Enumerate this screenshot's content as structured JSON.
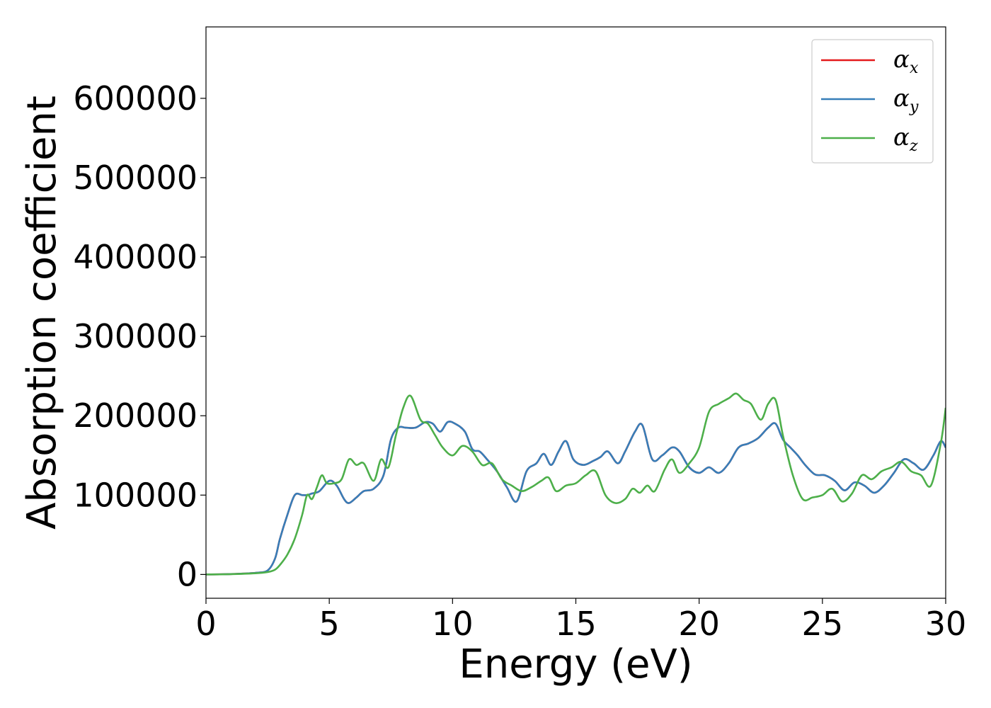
{
  "chart_data": {
    "type": "line",
    "title": "",
    "xlabel": "Energy (eV)",
    "ylabel": "Absorption coefficient",
    "xlim": [
      0,
      30
    ],
    "ylim": [
      -30000,
      690000
    ],
    "xticks": [
      0,
      5,
      10,
      15,
      20,
      25,
      30
    ],
    "yticks": [
      0,
      100000,
      200000,
      300000,
      400000,
      500000,
      600000
    ],
    "grid": false,
    "legend_position": "top-right",
    "colors": {
      "x": "#e41a1c",
      "y": "#377eb8",
      "z": "#4daf4a"
    },
    "series": [
      {
        "name": "α_x",
        "symbol": "α",
        "subscript": "x",
        "color": "#e41a1c",
        "x": [
          0,
          1,
          2,
          2.5,
          2.8,
          3.0,
          3.3,
          3.6,
          3.9,
          4.1,
          4.3,
          4.6,
          5.0,
          5.3,
          5.6,
          5.8,
          6.1,
          6.4,
          6.8,
          7.2,
          7.5,
          7.8,
          8.1,
          8.5,
          8.9,
          9.2,
          9.5,
          9.8,
          10.1,
          10.5,
          10.8,
          11.1,
          11.4,
          11.8,
          12.2,
          12.6,
          13.0,
          13.4,
          13.7,
          14.0,
          14.3,
          14.6,
          14.9,
          15.3,
          15.7,
          16.0,
          16.3,
          16.7,
          17.0,
          17.4,
          17.7,
          18.1,
          18.5,
          18.9,
          19.2,
          19.6,
          20.0,
          20.4,
          20.8,
          21.2,
          21.6,
          22.0,
          22.4,
          22.8,
          23.1,
          23.4,
          23.7,
          24.0,
          24.3,
          24.7,
          25.1,
          25.5,
          25.9,
          26.3,
          26.7,
          27.1,
          27.5,
          27.9,
          28.3,
          28.7,
          29.1,
          29.5,
          29.8,
          30.0
        ],
        "values": [
          0,
          500,
          2000,
          5000,
          20000,
          45000,
          75000,
          100000,
          100000,
          100000,
          102000,
          105000,
          118000,
          112000,
          95000,
          90000,
          97000,
          105000,
          108000,
          125000,
          170000,
          185000,
          185000,
          185000,
          192000,
          190000,
          180000,
          192000,
          190000,
          180000,
          158000,
          155000,
          145000,
          130000,
          110000,
          92000,
          130000,
          140000,
          152000,
          138000,
          155000,
          168000,
          145000,
          138000,
          143000,
          148000,
          155000,
          140000,
          155000,
          180000,
          188000,
          145000,
          150000,
          160000,
          155000,
          135000,
          128000,
          135000,
          128000,
          140000,
          160000,
          165000,
          172000,
          185000,
          190000,
          170000,
          160000,
          150000,
          138000,
          126000,
          125000,
          118000,
          106000,
          116000,
          112000,
          103000,
          112000,
          128000,
          145000,
          140000,
          132000,
          150000,
          168000,
          160000
        ]
      },
      {
        "name": "α_y",
        "symbol": "α",
        "subscript": "y",
        "color": "#377eb8",
        "x": [
          0,
          1,
          2,
          2.5,
          2.8,
          3.0,
          3.3,
          3.6,
          3.9,
          4.1,
          4.3,
          4.6,
          5.0,
          5.3,
          5.6,
          5.8,
          6.1,
          6.4,
          6.8,
          7.2,
          7.5,
          7.8,
          8.1,
          8.5,
          8.9,
          9.2,
          9.5,
          9.8,
          10.1,
          10.5,
          10.8,
          11.1,
          11.4,
          11.8,
          12.2,
          12.6,
          13.0,
          13.4,
          13.7,
          14.0,
          14.3,
          14.6,
          14.9,
          15.3,
          15.7,
          16.0,
          16.3,
          16.7,
          17.0,
          17.4,
          17.7,
          18.1,
          18.5,
          18.9,
          19.2,
          19.6,
          20.0,
          20.4,
          20.8,
          21.2,
          21.6,
          22.0,
          22.4,
          22.8,
          23.1,
          23.4,
          23.7,
          24.0,
          24.3,
          24.7,
          25.1,
          25.5,
          25.9,
          26.3,
          26.7,
          27.1,
          27.5,
          27.9,
          28.3,
          28.7,
          29.1,
          29.5,
          29.8,
          30.0
        ],
        "values": [
          0,
          500,
          2000,
          5000,
          20000,
          45000,
          75000,
          100000,
          100000,
          100000,
          102000,
          105000,
          118000,
          112000,
          95000,
          90000,
          97000,
          105000,
          108000,
          125000,
          170000,
          185000,
          185000,
          185000,
          192000,
          190000,
          180000,
          192000,
          190000,
          180000,
          158000,
          155000,
          145000,
          130000,
          110000,
          92000,
          130000,
          140000,
          152000,
          138000,
          155000,
          168000,
          145000,
          138000,
          143000,
          148000,
          155000,
          140000,
          155000,
          180000,
          188000,
          145000,
          150000,
          160000,
          155000,
          135000,
          128000,
          135000,
          128000,
          140000,
          160000,
          165000,
          172000,
          185000,
          190000,
          170000,
          160000,
          150000,
          138000,
          126000,
          125000,
          118000,
          106000,
          116000,
          112000,
          103000,
          112000,
          128000,
          145000,
          140000,
          132000,
          150000,
          168000,
          160000
        ]
      },
      {
        "name": "α_z",
        "symbol": "α",
        "subscript": "z",
        "color": "#4daf4a",
        "x": [
          0,
          1,
          2,
          2.5,
          2.8,
          3.0,
          3.3,
          3.6,
          3.9,
          4.1,
          4.3,
          4.5,
          4.7,
          4.9,
          5.2,
          5.5,
          5.8,
          6.1,
          6.4,
          6.8,
          7.1,
          7.4,
          7.7,
          8.0,
          8.3,
          8.7,
          9.0,
          9.3,
          9.6,
          10.0,
          10.4,
          10.8,
          11.2,
          11.6,
          12.0,
          12.4,
          12.8,
          13.2,
          13.6,
          13.9,
          14.2,
          14.6,
          15.0,
          15.4,
          15.8,
          16.2,
          16.6,
          17.0,
          17.3,
          17.6,
          17.9,
          18.2,
          18.6,
          18.9,
          19.2,
          19.6,
          20.0,
          20.4,
          20.8,
          21.2,
          21.5,
          21.8,
          22.1,
          22.5,
          22.8,
          23.1,
          23.4,
          23.8,
          24.2,
          24.6,
          25.0,
          25.4,
          25.8,
          26.2,
          26.6,
          27.0,
          27.4,
          27.8,
          28.2,
          28.6,
          29.0,
          29.4,
          29.8,
          30.0
        ],
        "values": [
          0,
          400,
          1500,
          3000,
          6000,
          12000,
          25000,
          45000,
          75000,
          100000,
          95000,
          110000,
          125000,
          115000,
          115000,
          120000,
          145000,
          138000,
          140000,
          118000,
          145000,
          135000,
          175000,
          210000,
          225000,
          195000,
          190000,
          175000,
          160000,
          150000,
          162000,
          155000,
          138000,
          140000,
          120000,
          112000,
          105000,
          110000,
          118000,
          122000,
          105000,
          112000,
          115000,
          125000,
          130000,
          100000,
          90000,
          95000,
          108000,
          103000,
          112000,
          105000,
          132000,
          145000,
          128000,
          140000,
          160000,
          205000,
          215000,
          222000,
          228000,
          220000,
          215000,
          195000,
          215000,
          220000,
          175000,
          125000,
          95000,
          97000,
          100000,
          108000,
          92000,
          102000,
          125000,
          120000,
          130000,
          135000,
          142000,
          130000,
          125000,
          112000,
          165000,
          210000
        ]
      }
    ]
  }
}
